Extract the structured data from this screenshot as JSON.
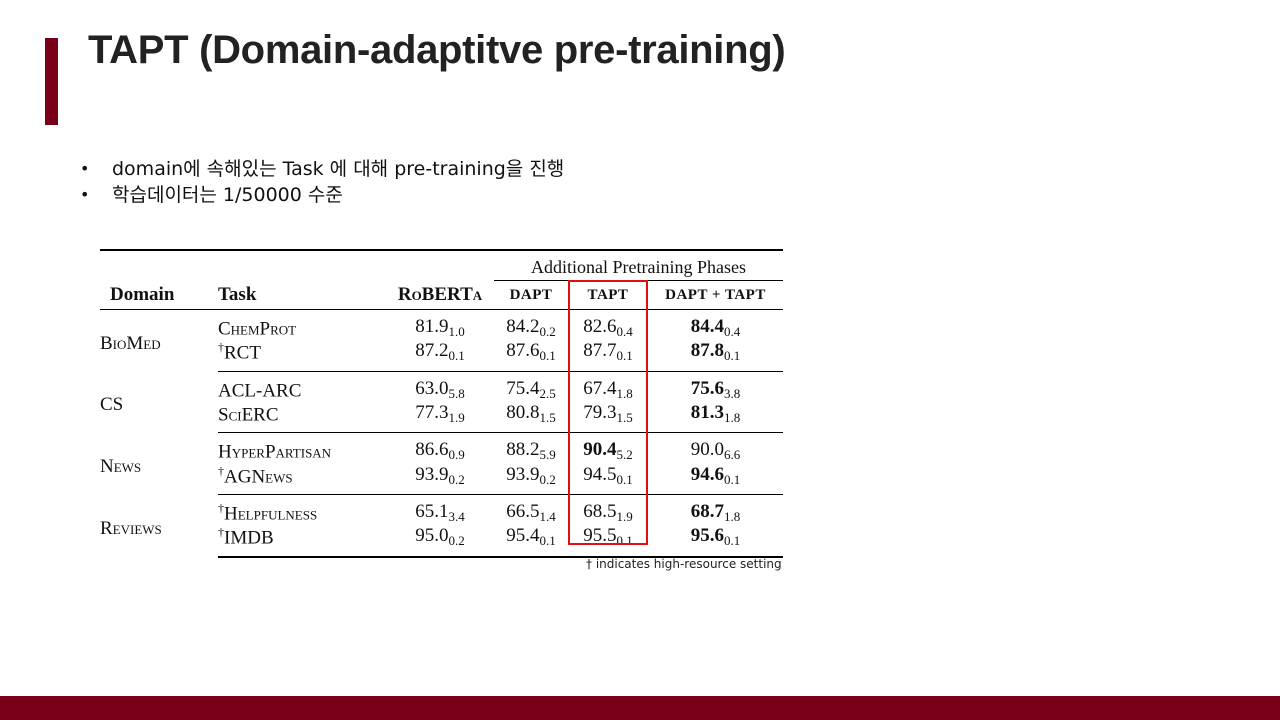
{
  "slide": {
    "title": "TAPT (Domain-adaptitve pre-training)",
    "bullets": [
      "domain에 속해있는 Task 에 대해 pre-training을 진행",
      "학습데이터는 1/50000 수준"
    ],
    "bullet_symbol": "•",
    "accent_color": "#7a0019",
    "highlight_color": "#e01010"
  },
  "table": {
    "group_header": "Additional Pretraining Phases",
    "headers": {
      "domain": "Domain",
      "task": "Task",
      "roberta": "RoBERTa",
      "dapt": "DAPT",
      "tapt": "TAPT",
      "dapt_tapt": "DAPT + TAPT"
    },
    "rows": [
      {
        "domain": "BioMed",
        "task_mark": "",
        "task": "ChemProt",
        "roberta": "81.9",
        "roberta_sd": "1.0",
        "dapt": "84.2",
        "dapt_sd": "0.2",
        "tapt": "82.6",
        "tapt_sd": "0.4",
        "dapt_tapt": "84.4",
        "dapt_tapt_sd": "0.4"
      },
      {
        "domain": "",
        "task_mark": "†",
        "task": "RCT",
        "roberta": "87.2",
        "roberta_sd": "0.1",
        "dapt": "87.6",
        "dapt_sd": "0.1",
        "tapt": "87.7",
        "tapt_sd": "0.1",
        "dapt_tapt": "87.8",
        "dapt_tapt_sd": "0.1"
      },
      {
        "domain": "CS",
        "task_mark": "",
        "task": "ACL-ARC",
        "roberta": "63.0",
        "roberta_sd": "5.8",
        "dapt": "75.4",
        "dapt_sd": "2.5",
        "tapt": "67.4",
        "tapt_sd": "1.8",
        "dapt_tapt": "75.6",
        "dapt_tapt_sd": "3.8"
      },
      {
        "domain": "",
        "task_mark": "",
        "task": "SciERC",
        "roberta": "77.3",
        "roberta_sd": "1.9",
        "dapt": "80.8",
        "dapt_sd": "1.5",
        "tapt": "79.3",
        "tapt_sd": "1.5",
        "dapt_tapt": "81.3",
        "dapt_tapt_sd": "1.8"
      },
      {
        "domain": "News",
        "task_mark": "",
        "task": "HyperPartisan",
        "roberta": "86.6",
        "roberta_sd": "0.9",
        "dapt": "88.2",
        "dapt_sd": "5.9",
        "tapt": "90.4",
        "tapt_sd": "5.2",
        "dapt_tapt": "90.0",
        "dapt_tapt_sd": "6.6"
      },
      {
        "domain": "",
        "task_mark": "†",
        "task": "AGNews",
        "roberta": "93.9",
        "roberta_sd": "0.2",
        "dapt": "93.9",
        "dapt_sd": "0.2",
        "tapt": "94.5",
        "tapt_sd": "0.1",
        "dapt_tapt": "94.6",
        "dapt_tapt_sd": "0.1"
      },
      {
        "domain": "Reviews",
        "task_mark": "†",
        "task": "Helpfulness",
        "roberta": "65.1",
        "roberta_sd": "3.4",
        "dapt": "66.5",
        "dapt_sd": "1.4",
        "tapt": "68.5",
        "tapt_sd": "1.9",
        "dapt_tapt": "68.7",
        "dapt_tapt_sd": "1.8"
      },
      {
        "domain": "",
        "task_mark": "†",
        "task": "IMDB",
        "roberta": "95.0",
        "roberta_sd": "0.2",
        "dapt": "95.4",
        "dapt_sd": "0.1",
        "tapt": "95.5",
        "tapt_sd": "0.1",
        "dapt_tapt": "95.6",
        "dapt_tapt_sd": "0.1"
      }
    ],
    "footnote": "† indicates high-resource setting"
  }
}
